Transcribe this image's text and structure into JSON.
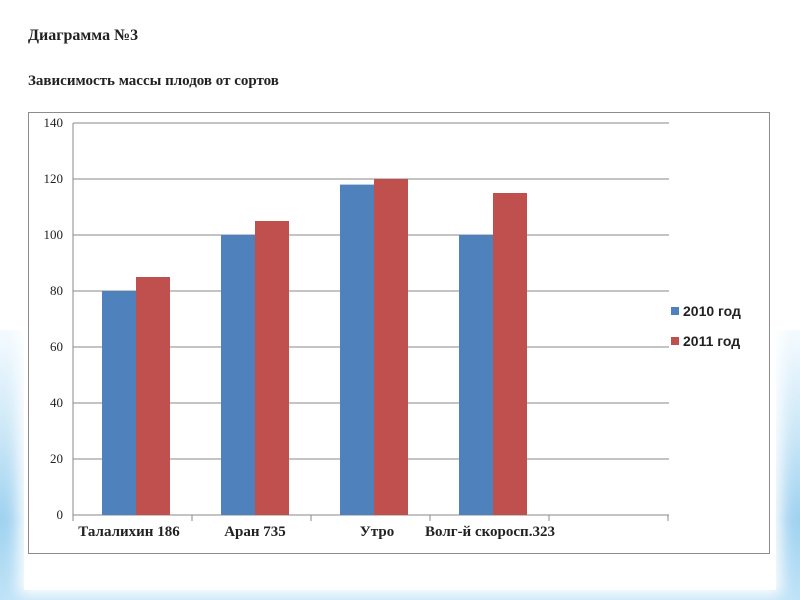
{
  "page": {
    "title": "Диаграмма №3",
    "subtitle": "Зависимость массы плодов от сортов"
  },
  "chart_data": {
    "type": "bar",
    "title": "",
    "xlabel": "",
    "ylabel": "",
    "ylim": [
      0,
      140
    ],
    "yticks": [
      0,
      20,
      40,
      60,
      80,
      100,
      120,
      140
    ],
    "grid": true,
    "legend_position": "right",
    "categories": [
      "Талалихин 186",
      "Аран 735",
      "Утро",
      "Волг-й скоросп.323"
    ],
    "series": [
      {
        "name": "2010 год",
        "color": "#4f81bd",
        "values": [
          80,
          100,
          118,
          100
        ]
      },
      {
        "name": "2011 год",
        "color": "#c0504d",
        "values": [
          85,
          105,
          120,
          115
        ]
      }
    ]
  }
}
